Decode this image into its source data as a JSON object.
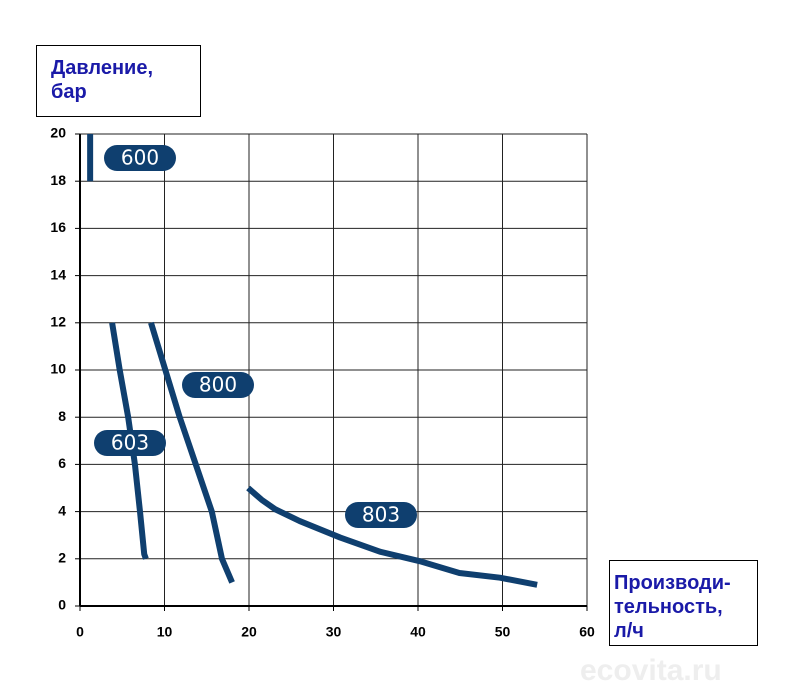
{
  "chart_data": {
    "type": "line",
    "ylabel": [
      "Давление,",
      "бар"
    ],
    "xlabel": [
      "Производи-",
      "тельность,",
      "л/ч"
    ],
    "watermark": "ecovita.ru",
    "xlim": [
      0,
      60
    ],
    "xticks": [
      0,
      10,
      20,
      30,
      40,
      50,
      60
    ],
    "ylim": [
      0,
      20
    ],
    "yticks": [
      0,
      2,
      4,
      6,
      8,
      10,
      12,
      14,
      16,
      18,
      20
    ],
    "grid": true,
    "series": [
      {
        "name": "600",
        "color": "#0f3f6f",
        "x": [
          1.2,
          1.2
        ],
        "values": [
          18,
          20
        ]
      },
      {
        "name": "603",
        "color": "#0f3f6f",
        "x": [
          3.8,
          4.7,
          5.7,
          6.5,
          7.1,
          7.6,
          7.8
        ],
        "values": [
          12,
          10,
          8,
          6,
          4,
          2.2,
          2
        ]
      },
      {
        "name": "800",
        "color": "#0f3f6f",
        "x": [
          8.4,
          10.1,
          11.8,
          13.7,
          15.6,
          16.8,
          18.0
        ],
        "values": [
          12,
          10,
          8,
          6,
          4,
          2,
          1
        ]
      },
      {
        "name": "803",
        "color": "#0f3f6f",
        "x": [
          19.9,
          21.5,
          23.1,
          26,
          30.8,
          35.5,
          40.2,
          44.9,
          49.7,
          54.1
        ],
        "values": [
          5.0,
          4.5,
          4.1,
          3.6,
          2.9,
          2.3,
          1.9,
          1.4,
          1.2,
          0.9
        ]
      }
    ]
  }
}
